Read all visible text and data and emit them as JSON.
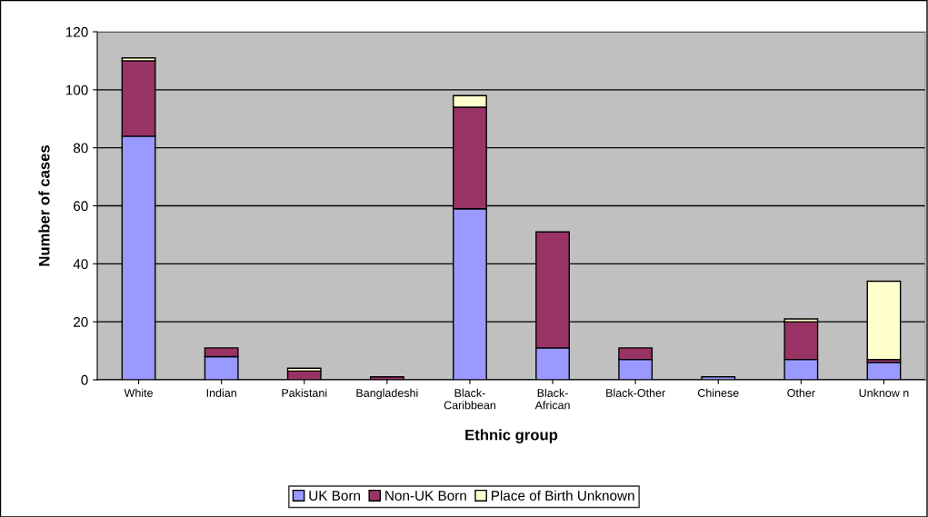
{
  "chart_data": {
    "type": "bar",
    "stacked": true,
    "xlabel": "Ethnic group",
    "ylabel": "Number of cases",
    "categories": [
      "White",
      "Indian",
      "Pakistani",
      "Bangladeshi",
      "Black-\nCaribbean",
      "Black-\nAfrican",
      "Black-Other",
      "Chinese",
      "Other",
      "Unknow n"
    ],
    "series": [
      {
        "name": "UK Born",
        "color": "#9999ff",
        "values": [
          84,
          8,
          0,
          0,
          59,
          11,
          7,
          1,
          7,
          6
        ]
      },
      {
        "name": "Non-UK Born",
        "color": "#993366",
        "values": [
          26,
          3,
          3,
          1,
          35,
          40,
          4,
          0,
          13,
          1
        ]
      },
      {
        "name": "Place of Birth Unknown",
        "color": "#ffffcc",
        "values": [
          1,
          0,
          1,
          0,
          4,
          0,
          0,
          0,
          1,
          27
        ]
      }
    ],
    "ylim": [
      0,
      120
    ],
    "yticks": [
      0,
      20,
      40,
      60,
      80,
      100,
      120
    ],
    "grid": "y",
    "legend": "bottom"
  }
}
